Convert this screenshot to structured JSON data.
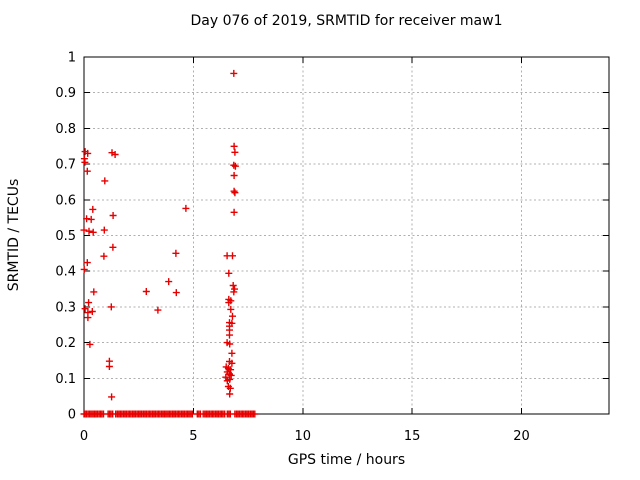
{
  "chart_data": {
    "type": "scatter",
    "title": "Day 076 of 2019, SRMTID for receiver maw1",
    "xlabel": "GPS time / hours",
    "ylabel": "SRMTID / TECUs",
    "xlim": [
      0,
      24
    ],
    "ylim": [
      0,
      1
    ],
    "xticks": [
      0,
      5,
      10,
      15,
      20
    ],
    "xtick_labels": [
      "0",
      "5",
      "10",
      "15",
      "20"
    ],
    "yticks": [
      0,
      0.1,
      0.2,
      0.3,
      0.4,
      0.5,
      0.6,
      0.7,
      0.8,
      0.9,
      1
    ],
    "ytick_labels": [
      "0",
      "0.1",
      "0.2",
      "0.3",
      "0.4",
      "0.5",
      "0.6",
      "0.7",
      "0.8",
      "0.9",
      "1"
    ],
    "grid": true,
    "legend": false,
    "marker_shape": "plus",
    "points": [
      [
        0.05,
        0.735
      ],
      [
        0.17,
        0.73
      ],
      [
        0.02,
        0.715
      ],
      [
        0.04,
        0.705
      ],
      [
        1.28,
        0.732
      ],
      [
        1.42,
        0.727
      ],
      [
        0.15,
        0.68
      ],
      [
        0.95,
        0.653
      ],
      [
        0.4,
        0.573
      ],
      [
        4.66,
        0.576
      ],
      [
        0.12,
        0.547
      ],
      [
        0.33,
        0.545
      ],
      [
        1.33,
        0.556
      ],
      [
        0.0,
        0.515
      ],
      [
        0.23,
        0.512
      ],
      [
        0.42,
        0.509
      ],
      [
        0.93,
        0.515
      ],
      [
        1.32,
        0.467
      ],
      [
        0.91,
        0.442
      ],
      [
        0.15,
        0.424
      ],
      [
        0.01,
        0.405
      ],
      [
        4.2,
        0.45
      ],
      [
        3.87,
        0.371
      ],
      [
        4.22,
        0.34
      ],
      [
        2.85,
        0.343
      ],
      [
        3.38,
        0.291
      ],
      [
        0.45,
        0.342
      ],
      [
        0.21,
        0.312
      ],
      [
        0.05,
        0.295
      ],
      [
        0.18,
        0.284
      ],
      [
        0.38,
        0.287
      ],
      [
        0.18,
        0.27
      ],
      [
        1.25,
        0.3
      ],
      [
        0.27,
        0.195
      ],
      [
        1.16,
        0.148
      ],
      [
        1.16,
        0.133
      ],
      [
        1.26,
        0.048
      ],
      [
        6.85,
        0.954
      ],
      [
        6.86,
        0.75
      ],
      [
        6.9,
        0.733
      ],
      [
        6.85,
        0.697
      ],
      [
        6.92,
        0.694
      ],
      [
        6.86,
        0.668
      ],
      [
        6.86,
        0.624
      ],
      [
        6.9,
        0.62
      ],
      [
        6.86,
        0.565
      ],
      [
        6.54,
        0.443
      ],
      [
        6.79,
        0.443
      ],
      [
        6.62,
        0.394
      ],
      [
        6.82,
        0.36
      ],
      [
        6.88,
        0.35
      ],
      [
        6.85,
        0.342
      ],
      [
        6.62,
        0.321
      ],
      [
        6.71,
        0.317
      ],
      [
        6.62,
        0.312
      ],
      [
        6.71,
        0.293
      ],
      [
        6.79,
        0.274
      ],
      [
        6.65,
        0.256
      ],
      [
        6.76,
        0.254
      ],
      [
        6.65,
        0.246
      ],
      [
        6.65,
        0.235
      ],
      [
        6.65,
        0.221
      ],
      [
        6.54,
        0.2
      ],
      [
        6.66,
        0.196
      ],
      [
        6.76,
        0.17
      ],
      [
        6.65,
        0.147
      ],
      [
        6.76,
        0.142
      ],
      [
        6.5,
        0.132
      ],
      [
        6.6,
        0.128
      ],
      [
        6.7,
        0.124
      ],
      [
        6.55,
        0.118
      ],
      [
        6.65,
        0.112
      ],
      [
        6.73,
        0.108
      ],
      [
        6.48,
        0.103
      ],
      [
        6.66,
        0.097
      ],
      [
        6.55,
        0.093
      ],
      [
        6.6,
        0.077
      ],
      [
        6.69,
        0.072
      ],
      [
        6.66,
        0.056
      ],
      [
        0.0,
        0.0
      ]
    ],
    "zero_value_segments": [
      [
        0.05,
        0.95
      ],
      [
        1.1,
        1.33
      ],
      [
        1.45,
        5.0
      ],
      [
        5.18,
        5.37
      ],
      [
        5.45,
        6.44
      ],
      [
        6.55,
        6.7
      ],
      [
        6.9,
        7.85
      ]
    ]
  },
  "colors": {
    "marker": "#e60000",
    "grid": "#b0b0b0",
    "axis": "#000000",
    "background": "#ffffff",
    "text": "#000000"
  }
}
